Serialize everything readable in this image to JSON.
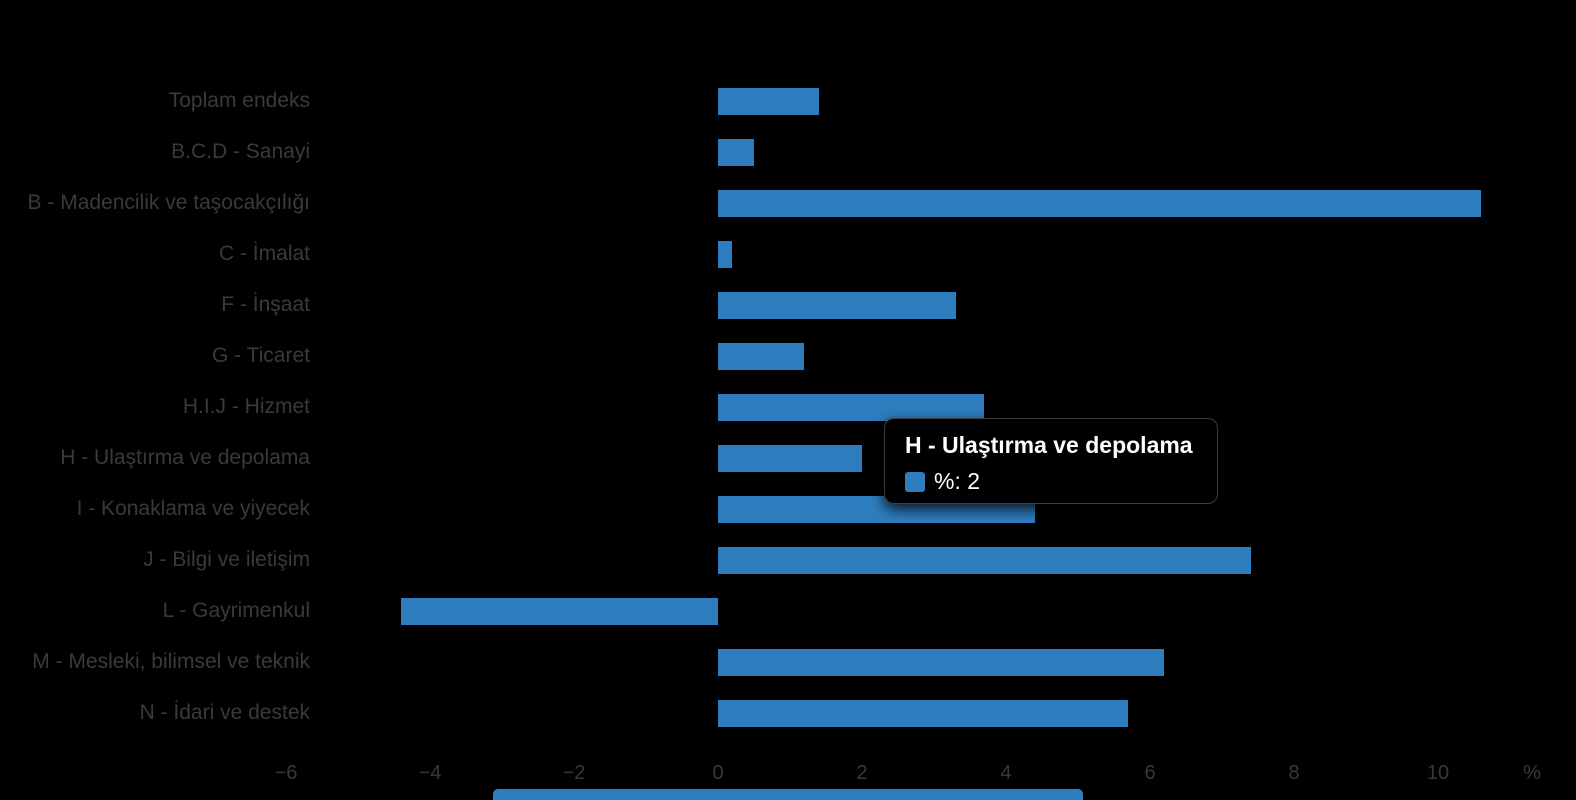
{
  "chart_data": {
    "type": "bar",
    "orientation": "horizontal",
    "title": "",
    "xlabel": "%",
    "ylabel": "",
    "categories": [
      "Toplam endeks",
      "B.C.D - Sanayi",
      "B - Madencilik ve taşocakçılığı",
      "C - İmalat",
      "F - İnşaat",
      "G - Ticaret",
      "H.I.J - Hizmet",
      "H - Ulaştırma ve depolama",
      "I - Konaklama ve yiyecek",
      "J - Bilgi ve iletişim",
      "L - Gayrimenkul",
      "M - Mesleki, bilimsel ve teknik",
      "N - İdari ve destek"
    ],
    "series": [
      {
        "name": "%",
        "values": [
          1.4,
          0.5,
          10.6,
          0.2,
          3.3,
          1.2,
          3.7,
          2,
          4.4,
          7.4,
          -4.4,
          6.2,
          5.7
        ]
      }
    ],
    "xlim": [
      -6,
      12
    ],
    "x_ticks": [
      {
        "value": -6,
        "label": "−6"
      },
      {
        "value": -4,
        "label": "−4"
      },
      {
        "value": -2,
        "label": "−2"
      },
      {
        "value": 0,
        "label": "0"
      },
      {
        "value": 2,
        "label": "2"
      },
      {
        "value": 4,
        "label": "4"
      },
      {
        "value": 6,
        "label": "6"
      },
      {
        "value": 8,
        "label": "8"
      },
      {
        "value": 10,
        "label": "10"
      }
    ],
    "x_axis_suffix": "%",
    "grid": false,
    "legend": "none",
    "bar_color": "#2e7dbf",
    "label_color": "#3a3a3a",
    "tick_color": "#383838",
    "background": "#000000"
  },
  "tooltip": {
    "title": "H - Ulaştırma ve depolama",
    "value_label": "%: 2",
    "swatch_color": "#2e7dbf",
    "text_color": "#ffffff",
    "background": "#000000"
  },
  "bottom_bar": {
    "color": "#2e7dbf"
  }
}
